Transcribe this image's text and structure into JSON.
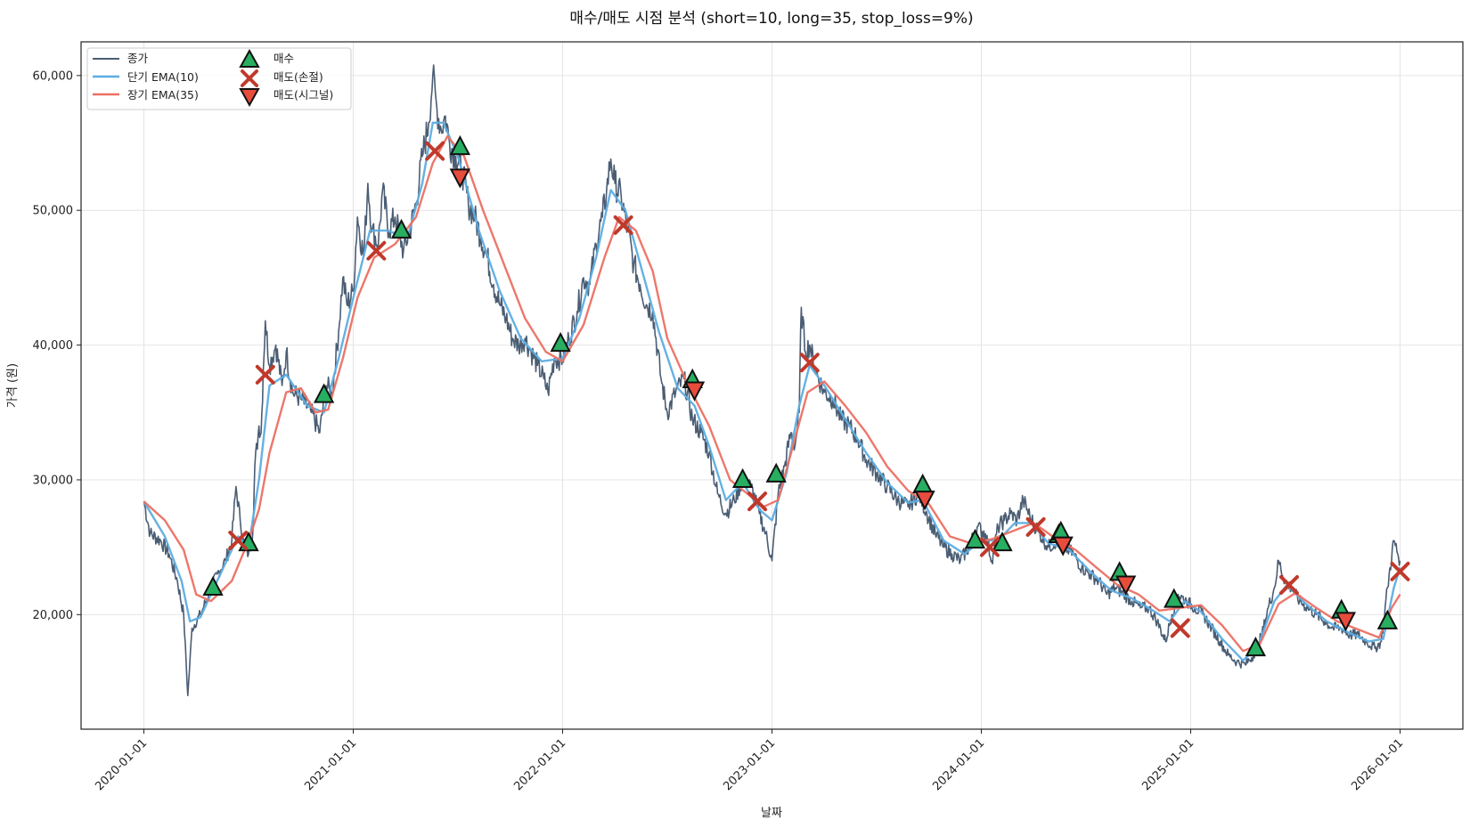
{
  "chart_data": {
    "type": "line",
    "title": "매수/매도 시점 분석 (short=10, long=35, stop_loss=9%)",
    "xlabel": "날짜",
    "ylabel": "가격 (원)",
    "x_ticks": [
      "2020-01-01",
      "2021-01-01",
      "2022-01-01",
      "2023-01-01",
      "2024-01-01",
      "2025-01-01",
      "2026-01-01"
    ],
    "y_ticks": [
      20000,
      30000,
      40000,
      50000,
      60000
    ],
    "y_tick_labels": [
      "20,000",
      "30,000",
      "40,000",
      "50,000",
      "60,000"
    ],
    "ylim": [
      11500,
      62500
    ],
    "xlim": [
      2019.7,
      2026.3
    ],
    "grid": true,
    "legend_position": "top-left",
    "legend": {
      "close": "종가",
      "ema_short": "단기 EMA(10)",
      "ema_long": "장기 EMA(35)",
      "buy": "매수",
      "sell_stop": "매도(손절)",
      "sell_signal": "매도(시그널)"
    },
    "colors": {
      "close": "#4a5d73",
      "ema_short": "#5dade2",
      "ema_long": "#ec7063",
      "buy": "#27ae60",
      "sell_stop": "#c0392b",
      "sell_signal": "#e74c3c",
      "hold": "#a9dfbf"
    },
    "close_anchors": [
      [
        2020.0,
        28400
      ],
      [
        2020.03,
        26000
      ],
      [
        2020.08,
        25500
      ],
      [
        2020.12,
        24500
      ],
      [
        2020.16,
        22500
      ],
      [
        2020.19,
        20000
      ],
      [
        2020.21,
        14000
      ],
      [
        2020.23,
        19000
      ],
      [
        2020.27,
        20000
      ],
      [
        2020.31,
        21500
      ],
      [
        2020.35,
        23000
      ],
      [
        2020.39,
        24000
      ],
      [
        2020.42,
        25500
      ],
      [
        2020.44,
        29500
      ],
      [
        2020.46,
        27000
      ],
      [
        2020.48,
        25000
      ],
      [
        2020.5,
        24500
      ],
      [
        2020.52,
        26000
      ],
      [
        2020.53,
        31000
      ],
      [
        2020.55,
        34000
      ],
      [
        2020.56,
        33500
      ],
      [
        2020.57,
        38000
      ],
      [
        2020.58,
        41800
      ],
      [
        2020.6,
        38500
      ],
      [
        2020.63,
        40000
      ],
      [
        2020.66,
        37000
      ],
      [
        2020.68,
        39500
      ],
      [
        2020.71,
        36500
      ],
      [
        2020.75,
        36000
      ],
      [
        2020.8,
        35000
      ],
      [
        2020.84,
        33500
      ],
      [
        2020.87,
        37000
      ],
      [
        2020.9,
        36500
      ],
      [
        2020.93,
        41000
      ],
      [
        2020.95,
        45000
      ],
      [
        2020.97,
        43000
      ],
      [
        2021.0,
        44000
      ],
      [
        2021.02,
        49500
      ],
      [
        2021.05,
        46500
      ],
      [
        2021.07,
        52000
      ],
      [
        2021.09,
        48500
      ],
      [
        2021.12,
        47500
      ],
      [
        2021.14,
        51500
      ],
      [
        2021.17,
        48500
      ],
      [
        2021.2,
        49500
      ],
      [
        2021.24,
        47000
      ],
      [
        2021.27,
        48500
      ],
      [
        2021.3,
        50500
      ],
      [
        2021.33,
        54000
      ],
      [
        2021.36,
        56500
      ],
      [
        2021.38,
        60000
      ],
      [
        2021.4,
        57500
      ],
      [
        2021.42,
        56000
      ],
      [
        2021.44,
        57000
      ],
      [
        2021.46,
        55000
      ],
      [
        2021.49,
        54000
      ],
      [
        2021.52,
        53000
      ],
      [
        2021.55,
        50500
      ],
      [
        2021.58,
        49500
      ],
      [
        2021.61,
        48000
      ],
      [
        2021.64,
        46500
      ],
      [
        2021.67,
        44500
      ],
      [
        2021.7,
        43000
      ],
      [
        2021.73,
        42000
      ],
      [
        2021.76,
        40500
      ],
      [
        2021.79,
        40000
      ],
      [
        2021.82,
        40500
      ],
      [
        2021.85,
        39500
      ],
      [
        2021.88,
        38500
      ],
      [
        2021.91,
        37500
      ],
      [
        2021.93,
        36500
      ],
      [
        2021.96,
        39000
      ],
      [
        2022.0,
        39000
      ],
      [
        2022.03,
        40500
      ],
      [
        2022.07,
        42500
      ],
      [
        2022.1,
        45000
      ],
      [
        2022.13,
        44500
      ],
      [
        2022.16,
        47500
      ],
      [
        2022.19,
        49500
      ],
      [
        2022.21,
        51500
      ],
      [
        2022.23,
        53800
      ],
      [
        2022.25,
        52000
      ],
      [
        2022.28,
        51000
      ],
      [
        2022.31,
        48500
      ],
      [
        2022.34,
        46000
      ],
      [
        2022.37,
        44500
      ],
      [
        2022.4,
        43000
      ],
      [
        2022.43,
        42500
      ],
      [
        2022.47,
        37500
      ],
      [
        2022.5,
        35000
      ],
      [
        2022.54,
        36500
      ],
      [
        2022.58,
        37500
      ],
      [
        2022.62,
        34500
      ],
      [
        2022.66,
        33500
      ],
      [
        2022.7,
        32000
      ],
      [
        2022.74,
        29000
      ],
      [
        2022.78,
        27500
      ],
      [
        2022.82,
        28500
      ],
      [
        2022.86,
        30000
      ],
      [
        2022.9,
        29500
      ],
      [
        2022.94,
        27500
      ],
      [
        2022.97,
        26000
      ],
      [
        2023.0,
        24000
      ],
      [
        2023.03,
        29000
      ],
      [
        2023.06,
        31000
      ],
      [
        2023.09,
        33500
      ],
      [
        2023.11,
        32500
      ],
      [
        2023.13,
        35000
      ],
      [
        2023.14,
        42800
      ],
      [
        2023.16,
        39500
      ],
      [
        2023.18,
        40000
      ],
      [
        2023.21,
        38000
      ],
      [
        2023.25,
        36500
      ],
      [
        2023.29,
        36000
      ],
      [
        2023.33,
        34500
      ],
      [
        2023.37,
        34000
      ],
      [
        2023.41,
        33000
      ],
      [
        2023.45,
        31500
      ],
      [
        2023.5,
        30500
      ],
      [
        2023.55,
        29500
      ],
      [
        2023.6,
        28500
      ],
      [
        2023.65,
        28000
      ],
      [
        2023.7,
        29000
      ],
      [
        2023.74,
        27500
      ],
      [
        2023.78,
        26000
      ],
      [
        2023.82,
        25000
      ],
      [
        2023.86,
        24500
      ],
      [
        2023.9,
        24000
      ],
      [
        2023.94,
        25000
      ],
      [
        2023.98,
        26500
      ],
      [
        2024.02,
        26000
      ],
      [
        2024.05,
        24000
      ],
      [
        2024.08,
        26500
      ],
      [
        2024.11,
        27000
      ],
      [
        2024.14,
        27500
      ],
      [
        2024.17,
        27000
      ],
      [
        2024.2,
        28500
      ],
      [
        2024.24,
        27000
      ],
      [
        2024.28,
        26000
      ],
      [
        2024.32,
        25000
      ],
      [
        2024.36,
        25500
      ],
      [
        2024.4,
        25000
      ],
      [
        2024.44,
        24500
      ],
      [
        2024.48,
        23500
      ],
      [
        2024.52,
        23000
      ],
      [
        2024.56,
        22500
      ],
      [
        2024.6,
        21500
      ],
      [
        2024.64,
        22000
      ],
      [
        2024.68,
        21500
      ],
      [
        2024.72,
        21000
      ],
      [
        2024.76,
        20500
      ],
      [
        2024.8,
        20500
      ],
      [
        2024.84,
        19500
      ],
      [
        2024.88,
        18000
      ],
      [
        2024.91,
        20000
      ],
      [
        2024.94,
        21500
      ],
      [
        2024.98,
        21000
      ],
      [
        2025.02,
        20500
      ],
      [
        2025.06,
        20000
      ],
      [
        2025.1,
        19000
      ],
      [
        2025.14,
        18000
      ],
      [
        2025.18,
        17000
      ],
      [
        2025.22,
        16500
      ],
      [
        2025.26,
        16300
      ],
      [
        2025.3,
        17000
      ],
      [
        2025.34,
        18500
      ],
      [
        2025.37,
        20500
      ],
      [
        2025.4,
        22000
      ],
      [
        2025.42,
        24000
      ],
      [
        2025.45,
        22500
      ],
      [
        2025.48,
        22000
      ],
      [
        2025.52,
        21000
      ],
      [
        2025.56,
        20500
      ],
      [
        2025.6,
        20000
      ],
      [
        2025.64,
        19500
      ],
      [
        2025.68,
        19000
      ],
      [
        2025.72,
        19000
      ],
      [
        2025.76,
        18500
      ],
      [
        2025.8,
        18500
      ],
      [
        2025.84,
        18000
      ],
      [
        2025.88,
        17500
      ],
      [
        2025.91,
        18000
      ],
      [
        2025.94,
        22000
      ],
      [
        2025.97,
        25500
      ],
      [
        2026.0,
        24000
      ]
    ],
    "ema_short_anchors": [
      [
        2020.0,
        28400
      ],
      [
        2020.1,
        25800
      ],
      [
        2020.18,
        22500
      ],
      [
        2020.22,
        19500
      ],
      [
        2020.27,
        19800
      ],
      [
        2020.35,
        22500
      ],
      [
        2020.45,
        25800
      ],
      [
        2020.5,
        25000
      ],
      [
        2020.55,
        30000
      ],
      [
        2020.6,
        37000
      ],
      [
        2020.68,
        37800
      ],
      [
        2020.78,
        35500
      ],
      [
        2020.86,
        35000
      ],
      [
        2020.93,
        39000
      ],
      [
        2021.0,
        43500
      ],
      [
        2021.08,
        48500
      ],
      [
        2021.16,
        48500
      ],
      [
        2021.26,
        48000
      ],
      [
        2021.33,
        52000
      ],
      [
        2021.38,
        56500
      ],
      [
        2021.43,
        56500
      ],
      [
        2021.5,
        54000
      ],
      [
        2021.6,
        48500
      ],
      [
        2021.7,
        44000
      ],
      [
        2021.8,
        40500
      ],
      [
        2021.9,
        38800
      ],
      [
        2022.0,
        39000
      ],
      [
        2022.08,
        42000
      ],
      [
        2022.16,
        46500
      ],
      [
        2022.23,
        51500
      ],
      [
        2022.3,
        50000
      ],
      [
        2022.38,
        45500
      ],
      [
        2022.46,
        41000
      ],
      [
        2022.55,
        36800
      ],
      [
        2022.63,
        35500
      ],
      [
        2022.7,
        32500
      ],
      [
        2022.78,
        28500
      ],
      [
        2022.86,
        29800
      ],
      [
        2022.94,
        27800
      ],
      [
        2023.0,
        27000
      ],
      [
        2023.07,
        30500
      ],
      [
        2023.13,
        35500
      ],
      [
        2023.18,
        38500
      ],
      [
        2023.25,
        37000
      ],
      [
        2023.35,
        34500
      ],
      [
        2023.45,
        32000
      ],
      [
        2023.55,
        29800
      ],
      [
        2023.65,
        28300
      ],
      [
        2023.72,
        28500
      ],
      [
        2023.82,
        25500
      ],
      [
        2023.92,
        24500
      ],
      [
        2024.0,
        25500
      ],
      [
        2024.08,
        25500
      ],
      [
        2024.16,
        26800
      ],
      [
        2024.24,
        26800
      ],
      [
        2024.32,
        25300
      ],
      [
        2024.42,
        24800
      ],
      [
        2024.52,
        23200
      ],
      [
        2024.62,
        21800
      ],
      [
        2024.72,
        21200
      ],
      [
        2024.82,
        20300
      ],
      [
        2024.9,
        19500
      ],
      [
        2024.97,
        21000
      ],
      [
        2025.05,
        20200
      ],
      [
        2025.15,
        18200
      ],
      [
        2025.25,
        16600
      ],
      [
        2025.32,
        17600
      ],
      [
        2025.4,
        21000
      ],
      [
        2025.46,
        22200
      ],
      [
        2025.55,
        20800
      ],
      [
        2025.65,
        19500
      ],
      [
        2025.75,
        18700
      ],
      [
        2025.85,
        18000
      ],
      [
        2025.92,
        18200
      ],
      [
        2025.97,
        22000
      ],
      [
        2026.0,
        23500
      ]
    ],
    "ema_long_anchors": [
      [
        2020.0,
        28400
      ],
      [
        2020.1,
        27000
      ],
      [
        2020.19,
        24800
      ],
      [
        2020.25,
        21500
      ],
      [
        2020.32,
        21000
      ],
      [
        2020.42,
        22500
      ],
      [
        2020.5,
        25500
      ],
      [
        2020.55,
        27800
      ],
      [
        2020.6,
        32000
      ],
      [
        2020.68,
        36500
      ],
      [
        2020.75,
        36800
      ],
      [
        2020.82,
        35000
      ],
      [
        2020.88,
        35200
      ],
      [
        2020.95,
        39000
      ],
      [
        2021.02,
        43500
      ],
      [
        2021.1,
        46500
      ],
      [
        2021.2,
        47500
      ],
      [
        2021.3,
        49500
      ],
      [
        2021.38,
        53500
      ],
      [
        2021.45,
        55500
      ],
      [
        2021.53,
        54000
      ],
      [
        2021.62,
        50000
      ],
      [
        2021.72,
        46000
      ],
      [
        2021.82,
        42000
      ],
      [
        2021.92,
        39500
      ],
      [
        2022.0,
        38800
      ],
      [
        2022.1,
        41500
      ],
      [
        2022.2,
        46500
      ],
      [
        2022.27,
        49500
      ],
      [
        2022.35,
        48500
      ],
      [
        2022.43,
        45500
      ],
      [
        2022.5,
        40500
      ],
      [
        2022.6,
        37000
      ],
      [
        2022.7,
        34000
      ],
      [
        2022.8,
        30000
      ],
      [
        2022.88,
        29000
      ],
      [
        2022.96,
        28000
      ],
      [
        2023.03,
        28500
      ],
      [
        2023.1,
        32500
      ],
      [
        2023.17,
        36500
      ],
      [
        2023.25,
        37300
      ],
      [
        2023.35,
        35500
      ],
      [
        2023.45,
        33500
      ],
      [
        2023.55,
        31000
      ],
      [
        2023.65,
        29200
      ],
      [
        2023.75,
        28200
      ],
      [
        2023.85,
        25800
      ],
      [
        2023.95,
        25300
      ],
      [
        2024.05,
        25600
      ],
      [
        2024.15,
        26200
      ],
      [
        2024.25,
        26800
      ],
      [
        2024.35,
        25700
      ],
      [
        2024.45,
        24800
      ],
      [
        2024.55,
        23500
      ],
      [
        2024.65,
        22200
      ],
      [
        2024.75,
        21500
      ],
      [
        2024.85,
        20300
      ],
      [
        2024.95,
        20500
      ],
      [
        2025.05,
        20700
      ],
      [
        2025.15,
        19200
      ],
      [
        2025.25,
        17300
      ],
      [
        2025.33,
        17800
      ],
      [
        2025.42,
        20800
      ],
      [
        2025.5,
        21600
      ],
      [
        2025.6,
        20500
      ],
      [
        2025.7,
        19500
      ],
      [
        2025.8,
        18900
      ],
      [
        2025.9,
        18300
      ],
      [
        2025.96,
        20500
      ],
      [
        2026.0,
        21500
      ]
    ],
    "buy_signals": [
      [
        2020.33,
        22000
      ],
      [
        2020.5,
        25300
      ],
      [
        2020.86,
        36300
      ],
      [
        2021.23,
        48500
      ],
      [
        2021.51,
        54700
      ],
      [
        2021.99,
        40100
      ],
      [
        2022.62,
        37400
      ],
      [
        2022.86,
        30000
      ],
      [
        2023.02,
        30400
      ],
      [
        2023.72,
        29600
      ],
      [
        2023.97,
        25500
      ],
      [
        2024.1,
        25300
      ],
      [
        2024.37,
        25900
      ],
      [
        2024.38,
        26100
      ],
      [
        2024.66,
        23100
      ],
      [
        2024.92,
        21100
      ],
      [
        2025.31,
        17500
      ],
      [
        2025.72,
        20300
      ],
      [
        2025.94,
        19500
      ]
    ],
    "sell_stop_signals": [
      [
        2020.45,
        25500
      ],
      [
        2020.58,
        37800
      ],
      [
        2021.11,
        47000
      ],
      [
        2021.39,
        54400
      ],
      [
        2022.29,
        48900
      ],
      [
        2022.93,
        28400
      ],
      [
        2023.18,
        38700
      ],
      [
        2024.04,
        25000
      ],
      [
        2024.26,
        26500
      ],
      [
        2024.95,
        19000
      ],
      [
        2025.47,
        22200
      ],
      [
        2026.0,
        23200
      ]
    ],
    "sell_signal_markers": [
      [
        2021.51,
        52500
      ],
      [
        2022.63,
        36700
      ],
      [
        2023.73,
        28600
      ],
      [
        2024.39,
        25200
      ],
      [
        2024.69,
        22300
      ],
      [
        2025.74,
        19600
      ]
    ]
  }
}
